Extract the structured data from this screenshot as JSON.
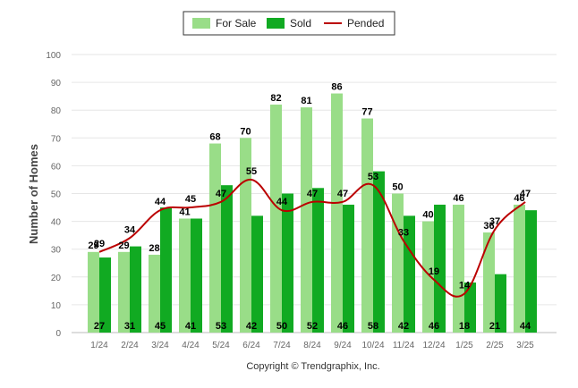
{
  "chart_data": {
    "type": "bar",
    "categories": [
      "1/24",
      "2/24",
      "3/24",
      "4/24",
      "5/24",
      "6/24",
      "7/24",
      "8/24",
      "9/24",
      "10/24",
      "11/24",
      "12/24",
      "1/25",
      "2/25",
      "3/25"
    ],
    "series": [
      {
        "name": "For Sale",
        "type": "bar",
        "color": "#99dd88",
        "values": [
          29,
          29,
          28,
          41,
          68,
          70,
          82,
          81,
          86,
          77,
          50,
          40,
          46,
          36,
          46
        ]
      },
      {
        "name": "Sold",
        "type": "bar",
        "color": "#11aa22",
        "values": [
          27,
          31,
          45,
          41,
          53,
          42,
          50,
          52,
          46,
          58,
          42,
          46,
          18,
          21,
          44
        ]
      },
      {
        "name": "Pended",
        "type": "line",
        "color": "#bb0000",
        "values": [
          29,
          34,
          44,
          45,
          47,
          55,
          44,
          47,
          47,
          53,
          33,
          19,
          14,
          37,
          47
        ]
      }
    ],
    "ylabel": "Number of Homes",
    "ylim": [
      0,
      100
    ],
    "yticks": [
      0,
      10,
      20,
      30,
      40,
      50,
      60,
      70,
      80,
      90,
      100
    ],
    "grid": true,
    "legend_position": "top-center"
  },
  "footer": {
    "credit": "Copyright © Trendgraphix, Inc."
  }
}
